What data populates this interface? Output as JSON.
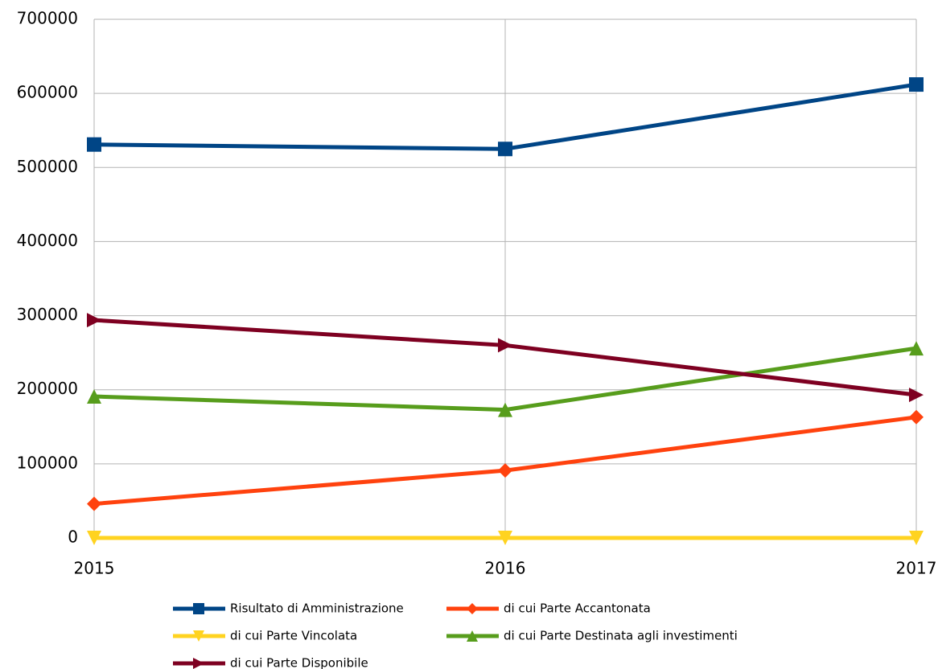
{
  "chart_data": {
    "type": "line",
    "categories": [
      "2015",
      "2016",
      "2017"
    ],
    "series": [
      {
        "name": "Risultato di Amministrazione",
        "color": "#004586",
        "marker": "square",
        "values": [
          531000,
          525000,
          612000
        ]
      },
      {
        "name": "di cui Parte Accantonata",
        "color": "#ff420e",
        "marker": "diamond",
        "values": [
          46000,
          91000,
          163000
        ]
      },
      {
        "name": "di cui Parte Vincolata",
        "color": "#ffd320",
        "marker": "triangle-down",
        "values": [
          0,
          0,
          0
        ]
      },
      {
        "name": "di cui Parte Destinata agli investimenti",
        "color": "#579d1c",
        "marker": "triangle-up",
        "values": [
          191000,
          173000,
          256000
        ]
      },
      {
        "name": "di cui Parte Disponibile",
        "color": "#7e0021",
        "marker": "triangle-right",
        "values": [
          294000,
          260000,
          193000
        ]
      }
    ],
    "ylim": [
      0,
      700000
    ],
    "yticks": [
      0,
      100000,
      200000,
      300000,
      400000,
      500000,
      600000,
      700000
    ],
    "grid": true,
    "legend": "bottom"
  }
}
